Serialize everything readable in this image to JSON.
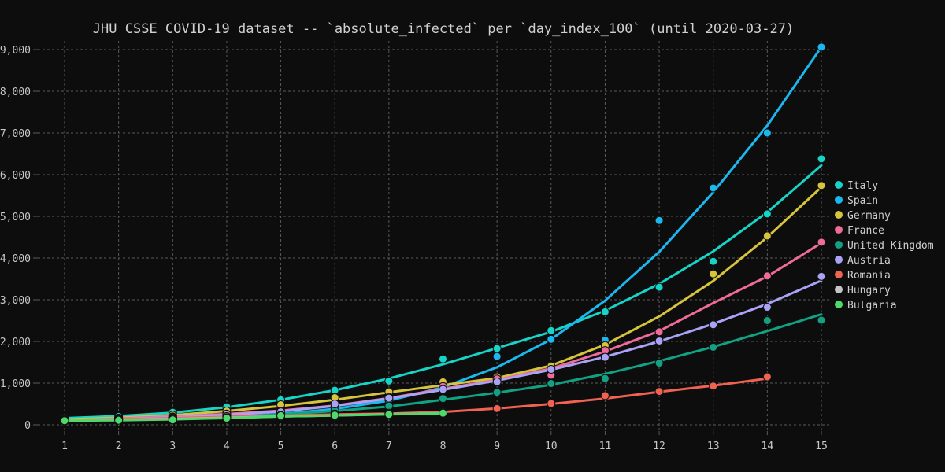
{
  "chart_data": {
    "type": "scatter",
    "title": "JHU CSSE COVID-19 dataset -- `absolute_infected` per `day_index_100` (until 2020-03-27)",
    "xlabel": "",
    "ylabel": "",
    "xlim": [
      0.5,
      15.2
    ],
    "ylim": [
      0,
      9300
    ],
    "x_ticks": [
      1,
      2,
      3,
      4,
      5,
      6,
      7,
      8,
      9,
      10,
      11,
      12,
      13,
      14,
      15
    ],
    "y_ticks": [
      0,
      1000,
      2000,
      3000,
      4000,
      5000,
      6000,
      7000,
      8000,
      9000
    ],
    "y_tick_labels": [
      "0",
      "1,000",
      "2,000",
      "3,000",
      "4,000",
      "5,000",
      "6,000",
      "7,000",
      "8,000",
      "9,000"
    ],
    "grid": true,
    "legend_position": "right",
    "overlays": "fitted curve per series",
    "series": [
      {
        "name": "Italy",
        "color": "#17d4c8",
        "points": [
          [
            1,
            150
          ],
          [
            2,
            200
          ],
          [
            3,
            300
          ],
          [
            4,
            430
          ],
          [
            5,
            600
          ],
          [
            6,
            830
          ],
          [
            7,
            1050
          ],
          [
            8,
            1580
          ],
          [
            9,
            1830
          ],
          [
            10,
            2260
          ],
          [
            11,
            2710
          ],
          [
            12,
            3300
          ],
          [
            13,
            3920
          ],
          [
            14,
            5060
          ],
          [
            15,
            6380
          ]
        ],
        "fit": [
          [
            1,
            160
          ],
          [
            2,
            210
          ],
          [
            3,
            290
          ],
          [
            4,
            420
          ],
          [
            5,
            600
          ],
          [
            6,
            830
          ],
          [
            7,
            1110
          ],
          [
            8,
            1450
          ],
          [
            9,
            1840
          ],
          [
            10,
            2230
          ],
          [
            11,
            2740
          ],
          [
            12,
            3380
          ],
          [
            13,
            4160
          ],
          [
            14,
            5100
          ],
          [
            15,
            6220
          ]
        ]
      },
      {
        "name": "Spain",
        "color": "#1bb8f0",
        "points": [
          [
            1,
            120
          ],
          [
            2,
            160
          ],
          [
            3,
            190
          ],
          [
            4,
            230
          ],
          [
            5,
            300
          ],
          [
            6,
            420
          ],
          [
            7,
            600
          ],
          [
            8,
            950
          ],
          [
            9,
            1640
          ],
          [
            10,
            2050
          ],
          [
            11,
            2030
          ],
          [
            12,
            4900
          ],
          [
            13,
            5680
          ],
          [
            14,
            7000
          ],
          [
            15,
            9060
          ]
        ],
        "fit": [
          [
            1,
            140
          ],
          [
            2,
            150
          ],
          [
            3,
            170
          ],
          [
            4,
            200
          ],
          [
            5,
            260
          ],
          [
            6,
            380
          ],
          [
            7,
            580
          ],
          [
            8,
            900
          ],
          [
            9,
            1380
          ],
          [
            10,
            2050
          ],
          [
            11,
            2980
          ],
          [
            12,
            4150
          ],
          [
            13,
            5580
          ],
          [
            14,
            7180
          ],
          [
            15,
            9060
          ]
        ]
      },
      {
        "name": "Germany",
        "color": "#d6c43c",
        "points": [
          [
            1,
            130
          ],
          [
            2,
            160
          ],
          [
            3,
            230
          ],
          [
            4,
            330
          ],
          [
            5,
            480
          ],
          [
            6,
            650
          ],
          [
            7,
            790
          ],
          [
            8,
            1030
          ],
          [
            9,
            1150
          ],
          [
            10,
            1410
          ],
          [
            11,
            1900
          ],
          [
            12,
            2220
          ],
          [
            13,
            3620
          ],
          [
            14,
            4530
          ],
          [
            15,
            5740
          ]
        ],
        "fit": [
          [
            1,
            130
          ],
          [
            2,
            170
          ],
          [
            3,
            230
          ],
          [
            4,
            330
          ],
          [
            5,
            450
          ],
          [
            6,
            600
          ],
          [
            7,
            780
          ],
          [
            8,
            950
          ],
          [
            9,
            1120
          ],
          [
            10,
            1420
          ],
          [
            11,
            1920
          ],
          [
            12,
            2600
          ],
          [
            13,
            3450
          ],
          [
            14,
            4500
          ],
          [
            15,
            5700
          ]
        ]
      },
      {
        "name": "France",
        "color": "#f06b9a",
        "points": [
          [
            1,
            110
          ],
          [
            2,
            140
          ],
          [
            3,
            190
          ],
          [
            4,
            260
          ],
          [
            5,
            330
          ],
          [
            6,
            420
          ],
          [
            7,
            660
          ],
          [
            8,
            920
          ],
          [
            9,
            1100
          ],
          [
            10,
            1190
          ],
          [
            11,
            1780
          ],
          [
            12,
            2230
          ],
          [
            13,
            2390
          ],
          [
            14,
            3570
          ],
          [
            15,
            4380
          ]
        ],
        "fit": [
          [
            1,
            110
          ],
          [
            2,
            150
          ],
          [
            3,
            200
          ],
          [
            4,
            260
          ],
          [
            5,
            340
          ],
          [
            6,
            460
          ],
          [
            7,
            640
          ],
          [
            8,
            860
          ],
          [
            9,
            1080
          ],
          [
            10,
            1350
          ],
          [
            11,
            1760
          ],
          [
            12,
            2250
          ],
          [
            13,
            2920
          ],
          [
            14,
            3560
          ],
          [
            15,
            4360
          ]
        ]
      },
      {
        "name": "United Kingdom",
        "color": "#12a283",
        "points": [
          [
            1,
            90
          ],
          [
            2,
            120
          ],
          [
            3,
            160
          ],
          [
            4,
            200
          ],
          [
            5,
            260
          ],
          [
            6,
            340
          ],
          [
            7,
            450
          ],
          [
            8,
            630
          ],
          [
            9,
            780
          ],
          [
            10,
            990
          ],
          [
            11,
            1110
          ],
          [
            12,
            1480
          ],
          [
            13,
            1860
          ],
          [
            14,
            2500
          ],
          [
            15,
            2510
          ]
        ],
        "fit": [
          [
            1,
            90
          ],
          [
            2,
            120
          ],
          [
            3,
            150
          ],
          [
            4,
            190
          ],
          [
            5,
            250
          ],
          [
            6,
            330
          ],
          [
            7,
            440
          ],
          [
            8,
            600
          ],
          [
            9,
            770
          ],
          [
            10,
            960
          ],
          [
            11,
            1220
          ],
          [
            12,
            1530
          ],
          [
            13,
            1870
          ],
          [
            14,
            2250
          ],
          [
            15,
            2650
          ]
        ]
      },
      {
        "name": "Austria",
        "color": "#a9a2f5",
        "points": [
          [
            1,
            100
          ],
          [
            2,
            130
          ],
          [
            3,
            180
          ],
          [
            4,
            250
          ],
          [
            5,
            310
          ],
          [
            6,
            500
          ],
          [
            7,
            640
          ],
          [
            8,
            850
          ],
          [
            9,
            1030
          ],
          [
            10,
            1330
          ],
          [
            11,
            1620
          ],
          [
            12,
            2010
          ],
          [
            13,
            2400
          ],
          [
            14,
            2820
          ],
          [
            15,
            3560
          ]
        ],
        "fit": [
          [
            1,
            110
          ],
          [
            2,
            140
          ],
          [
            3,
            180
          ],
          [
            4,
            240
          ],
          [
            5,
            320
          ],
          [
            6,
            450
          ],
          [
            7,
            630
          ],
          [
            8,
            840
          ],
          [
            9,
            1060
          ],
          [
            10,
            1320
          ],
          [
            11,
            1630
          ],
          [
            12,
            2000
          ],
          [
            13,
            2420
          ],
          [
            14,
            2900
          ],
          [
            15,
            3460
          ]
        ]
      },
      {
        "name": "Romania",
        "color": "#f06252",
        "points": [
          [
            1,
            110
          ],
          [
            2,
            130
          ],
          [
            3,
            160
          ],
          [
            4,
            200
          ],
          [
            5,
            230
          ],
          [
            6,
            260
          ],
          [
            7,
            280
          ],
          [
            8,
            310
          ],
          [
            9,
            390
          ],
          [
            10,
            510
          ],
          [
            11,
            700
          ],
          [
            12,
            800
          ],
          [
            13,
            930
          ],
          [
            14,
            1150
          ]
        ],
        "fit": [
          [
            1,
            110
          ],
          [
            2,
            130
          ],
          [
            3,
            160
          ],
          [
            4,
            190
          ],
          [
            5,
            220
          ],
          [
            6,
            250
          ],
          [
            7,
            270
          ],
          [
            8,
            310
          ],
          [
            9,
            390
          ],
          [
            10,
            500
          ],
          [
            11,
            630
          ],
          [
            12,
            790
          ],
          [
            13,
            940
          ],
          [
            14,
            1110
          ]
        ]
      },
      {
        "name": "Hungary",
        "color": "#c4c4c4",
        "points": [
          [
            1,
            100
          ],
          [
            2,
            120
          ],
          [
            3,
            140
          ],
          [
            4,
            170
          ],
          [
            5,
            200
          ],
          [
            6,
            220
          ],
          [
            7,
            260
          ],
          [
            8,
            290
          ]
        ],
        "fit": [
          [
            1,
            100
          ],
          [
            2,
            120
          ],
          [
            3,
            140
          ],
          [
            4,
            170
          ],
          [
            5,
            200
          ],
          [
            6,
            225
          ],
          [
            7,
            255
          ],
          [
            8,
            280
          ]
        ]
      },
      {
        "name": "Bulgaria",
        "color": "#4fd96a",
        "points": [
          [
            1,
            100
          ],
          [
            2,
            110
          ],
          [
            3,
            120
          ],
          [
            4,
            160
          ],
          [
            5,
            220
          ],
          [
            6,
            230
          ],
          [
            7,
            250
          ],
          [
            8,
            280
          ]
        ],
        "fit": [
          [
            1,
            100
          ],
          [
            2,
            110
          ],
          [
            3,
            130
          ],
          [
            4,
            160
          ],
          [
            5,
            200
          ],
          [
            6,
            225
          ],
          [
            7,
            250
          ],
          [
            8,
            275
          ]
        ]
      }
    ]
  }
}
